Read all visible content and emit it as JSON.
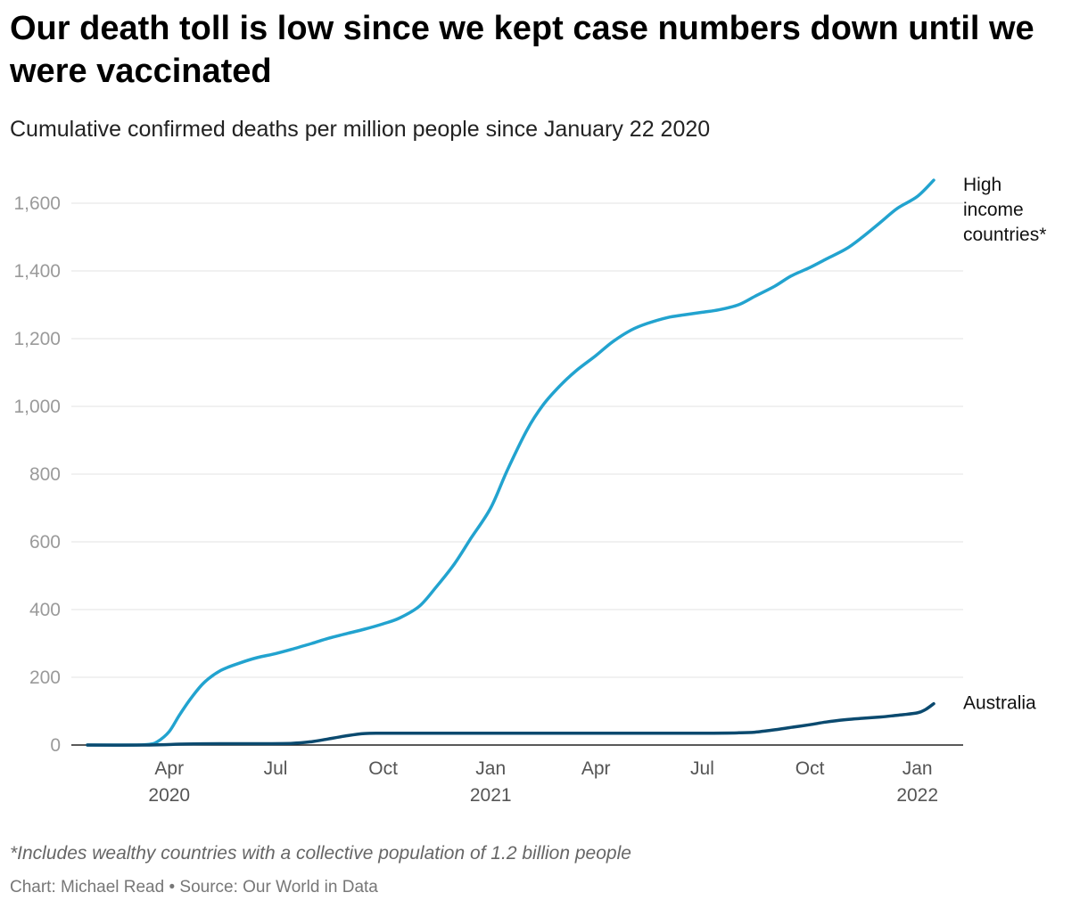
{
  "title": "Our death toll is low since we kept case numbers down until we were vaccinated",
  "subtitle": "Cumulative confirmed deaths per million people since January 22 2020",
  "footnote": "*Includes wealthy countries with a collective population of 1.2 billion people",
  "credit": "Chart: Michael Read • Source: Our World in Data",
  "chart_data": {
    "type": "line",
    "title": "Our death toll is low since we kept case numbers down until we were vaccinated",
    "subtitle": "Cumulative confirmed deaths per million people since January 22 2020",
    "xlabel": "",
    "ylabel": "",
    "ylim": [
      0,
      1700
    ],
    "xlim": [
      "2020-01-22",
      "2022-01-31"
    ],
    "y_ticks": [
      0,
      200,
      400,
      600,
      800,
      1000,
      1200,
      1400,
      1600
    ],
    "y_tick_labels": [
      "0",
      "200",
      "400",
      "600",
      "800",
      "1,000",
      "1,200",
      "1,400",
      "1,600"
    ],
    "x_ticks": [
      {
        "date": "2020-04-01",
        "label": "Apr",
        "year": "2020"
      },
      {
        "date": "2020-07-01",
        "label": "Jul",
        "year": ""
      },
      {
        "date": "2020-10-01",
        "label": "Oct",
        "year": ""
      },
      {
        "date": "2021-01-01",
        "label": "Jan",
        "year": "2021"
      },
      {
        "date": "2021-04-01",
        "label": "Apr",
        "year": ""
      },
      {
        "date": "2021-07-01",
        "label": "Jul",
        "year": ""
      },
      {
        "date": "2021-10-01",
        "label": "Oct",
        "year": ""
      },
      {
        "date": "2022-01-01",
        "label": "Jan",
        "year": "2022"
      }
    ],
    "grid": true,
    "legend": "direct labels at line ends",
    "series": [
      {
        "name": "High income countries*",
        "label_lines": [
          "High",
          "income",
          "countries*"
        ],
        "color": "#22a3cf",
        "points": [
          [
            "2020-01-22",
            0
          ],
          [
            "2020-03-01",
            0
          ],
          [
            "2020-03-15",
            2
          ],
          [
            "2020-03-22",
            10
          ],
          [
            "2020-04-01",
            40
          ],
          [
            "2020-04-10",
            90
          ],
          [
            "2020-04-20",
            140
          ],
          [
            "2020-05-01",
            185
          ],
          [
            "2020-05-15",
            220
          ],
          [
            "2020-06-01",
            243
          ],
          [
            "2020-06-15",
            258
          ],
          [
            "2020-07-01",
            270
          ],
          [
            "2020-07-15",
            283
          ],
          [
            "2020-08-01",
            300
          ],
          [
            "2020-08-15",
            315
          ],
          [
            "2020-09-01",
            330
          ],
          [
            "2020-09-15",
            342
          ],
          [
            "2020-10-01",
            358
          ],
          [
            "2020-10-15",
            375
          ],
          [
            "2020-11-01",
            410
          ],
          [
            "2020-11-15",
            465
          ],
          [
            "2020-12-01",
            535
          ],
          [
            "2020-12-15",
            610
          ],
          [
            "2021-01-01",
            700
          ],
          [
            "2021-01-15",
            810
          ],
          [
            "2021-02-01",
            930
          ],
          [
            "2021-02-15",
            1005
          ],
          [
            "2021-03-01",
            1060
          ],
          [
            "2021-03-15",
            1105
          ],
          [
            "2021-04-01",
            1150
          ],
          [
            "2021-04-15",
            1190
          ],
          [
            "2021-05-01",
            1225
          ],
          [
            "2021-05-15",
            1245
          ],
          [
            "2021-06-01",
            1262
          ],
          [
            "2021-06-15",
            1270
          ],
          [
            "2021-07-01",
            1278
          ],
          [
            "2021-07-15",
            1285
          ],
          [
            "2021-08-01",
            1300
          ],
          [
            "2021-08-15",
            1325
          ],
          [
            "2021-09-01",
            1355
          ],
          [
            "2021-09-15",
            1385
          ],
          [
            "2021-10-01",
            1410
          ],
          [
            "2021-10-15",
            1435
          ],
          [
            "2021-11-01",
            1465
          ],
          [
            "2021-11-15",
            1500
          ],
          [
            "2021-12-01",
            1545
          ],
          [
            "2021-12-15",
            1585
          ],
          [
            "2022-01-01",
            1620
          ],
          [
            "2022-01-15",
            1668
          ]
        ]
      },
      {
        "name": "Australia",
        "label_lines": [
          "Australia"
        ],
        "color": "#0b4a6f",
        "points": [
          [
            "2020-01-22",
            0
          ],
          [
            "2020-03-15",
            0
          ],
          [
            "2020-04-15",
            3
          ],
          [
            "2020-05-15",
            4
          ],
          [
            "2020-06-15",
            4
          ],
          [
            "2020-07-15",
            5
          ],
          [
            "2020-08-01",
            10
          ],
          [
            "2020-08-15",
            18
          ],
          [
            "2020-09-01",
            28
          ],
          [
            "2020-09-15",
            34
          ],
          [
            "2020-10-01",
            35
          ],
          [
            "2020-11-01",
            35
          ],
          [
            "2021-01-01",
            35
          ],
          [
            "2021-04-01",
            35
          ],
          [
            "2021-07-01",
            35
          ],
          [
            "2021-08-01",
            36
          ],
          [
            "2021-08-15",
            38
          ],
          [
            "2021-09-01",
            45
          ],
          [
            "2021-09-15",
            52
          ],
          [
            "2021-10-01",
            60
          ],
          [
            "2021-10-15",
            68
          ],
          [
            "2021-11-01",
            75
          ],
          [
            "2021-11-15",
            79
          ],
          [
            "2021-12-01",
            83
          ],
          [
            "2021-12-15",
            88
          ],
          [
            "2022-01-01",
            95
          ],
          [
            "2022-01-08",
            105
          ],
          [
            "2022-01-15",
            122
          ]
        ]
      }
    ]
  }
}
